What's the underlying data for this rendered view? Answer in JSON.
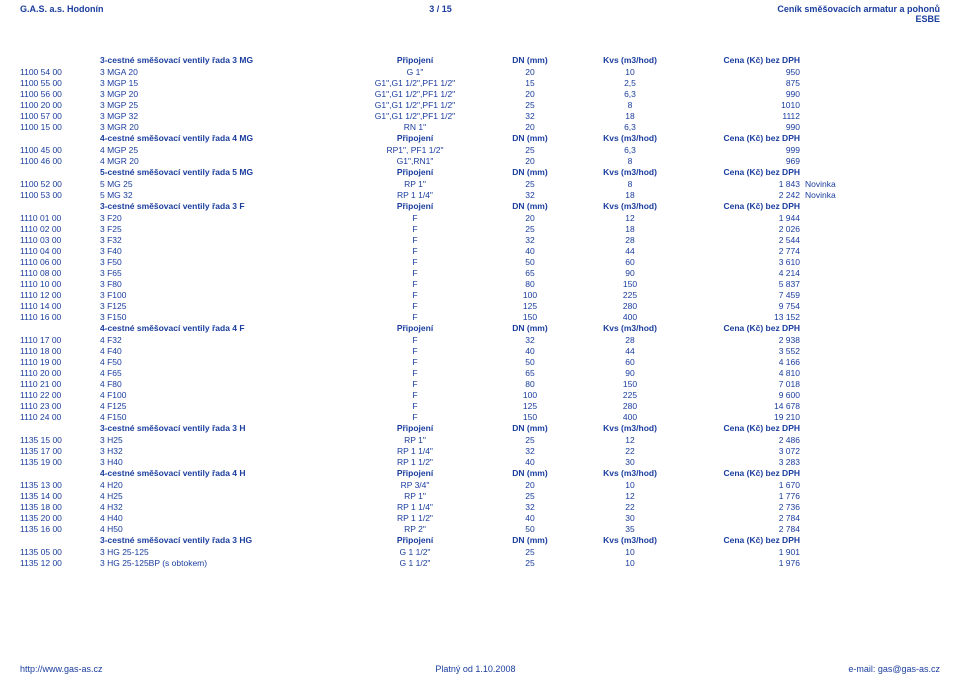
{
  "header": {
    "left": "G.A.S. a.s. Hodonín",
    "center": "3 / 15",
    "right1": "Ceník směšovacích armatur a pohonů",
    "right2": "ESBE"
  },
  "columns": {
    "conn": "Připojení",
    "dn": "DN (mm)",
    "kvs": "Kvs (m3/hod)",
    "price": "Cena (Kč) bez DPH"
  },
  "sections": [
    {
      "title": "3-cestné směšovací ventily řada 3 MG",
      "rows": [
        {
          "code": "1100 54 00",
          "name": "3 MGA 20",
          "conn": "G 1\"",
          "dn": "20",
          "kvs": "10",
          "price": "950",
          "note": ""
        },
        {
          "code": "1100 55 00",
          "name": "3 MGP 15",
          "conn": "G1\",G1 1/2\",PF1 1/2\"",
          "dn": "15",
          "kvs": "2,5",
          "price": "875",
          "note": ""
        },
        {
          "code": "1100 56 00",
          "name": "3 MGP 20",
          "conn": "G1\",G1 1/2\",PF1 1/2\"",
          "dn": "20",
          "kvs": "6,3",
          "price": "990",
          "note": ""
        },
        {
          "code": "1100 20 00",
          "name": "3 MGP 25",
          "conn": "G1\",G1 1/2\",PF1 1/2\"",
          "dn": "25",
          "kvs": "8",
          "price": "1010",
          "note": ""
        },
        {
          "code": "1100 57 00",
          "name": "3 MGP 32",
          "conn": "G1\",G1 1/2\",PF1 1/2\"",
          "dn": "32",
          "kvs": "18",
          "price": "1112",
          "note": ""
        },
        {
          "code": "1100 15 00",
          "name": "3 MGR 20",
          "conn": "RN 1\"",
          "dn": "20",
          "kvs": "6,3",
          "price": "990",
          "note": ""
        }
      ]
    },
    {
      "title": "4-cestné směšovací ventily řada 4 MG",
      "rows": [
        {
          "code": "1100 45 00",
          "name": "4 MGP 25",
          "conn": "RP1\", PF1 1/2\"",
          "dn": "25",
          "kvs": "6,3",
          "price": "999",
          "note": ""
        },
        {
          "code": "1100 46 00",
          "name": "4 MGR 20",
          "conn": "G1\",RN1\"",
          "dn": "20",
          "kvs": "8",
          "price": "969",
          "note": ""
        }
      ]
    },
    {
      "title": "5-cestné směšovací ventily řada 5 MG",
      "rows": [
        {
          "code": "1100 52 00",
          "name": "5 MG 25",
          "conn": "RP 1\"",
          "dn": "25",
          "kvs": "8",
          "price": "1 843",
          "note": "Novinka"
        },
        {
          "code": "1100 53 00",
          "name": "5 MG 32",
          "conn": "RP 1 1/4\"",
          "dn": "32",
          "kvs": "18",
          "price": "2 242",
          "note": "Novinka"
        }
      ]
    },
    {
      "title": "3-cestné směšovací ventily řada  3 F",
      "rows": [
        {
          "code": "1110 01 00",
          "name": "3 F20",
          "conn": "F",
          "dn": "20",
          "kvs": "12",
          "price": "1 944",
          "note": ""
        },
        {
          "code": "1110 02 00",
          "name": "3 F25",
          "conn": "F",
          "dn": "25",
          "kvs": "18",
          "price": "2 026",
          "note": ""
        },
        {
          "code": "1110 03 00",
          "name": "3 F32",
          "conn": "F",
          "dn": "32",
          "kvs": "28",
          "price": "2 544",
          "note": ""
        },
        {
          "code": "1110 04 00",
          "name": "3 F40",
          "conn": "F",
          "dn": "40",
          "kvs": "44",
          "price": "2 774",
          "note": ""
        },
        {
          "code": "1110 06 00",
          "name": "3 F50",
          "conn": "F",
          "dn": "50",
          "kvs": "60",
          "price": "3 610",
          "note": ""
        },
        {
          "code": "1110 08 00",
          "name": "3 F65",
          "conn": "F",
          "dn": "65",
          "kvs": "90",
          "price": "4 214",
          "note": ""
        },
        {
          "code": "1110 10 00",
          "name": "3 F80",
          "conn": "F",
          "dn": "80",
          "kvs": "150",
          "price": "5 837",
          "note": ""
        },
        {
          "code": "1110 12 00",
          "name": "3 F100",
          "conn": "F",
          "dn": "100",
          "kvs": "225",
          "price": "7 459",
          "note": ""
        },
        {
          "code": "1110 14 00",
          "name": "3 F125",
          "conn": "F",
          "dn": "125",
          "kvs": "280",
          "price": "9 754",
          "note": ""
        },
        {
          "code": "1110 16 00",
          "name": "3 F150",
          "conn": "F",
          "dn": "150",
          "kvs": "400",
          "price": "13 152",
          "note": ""
        }
      ]
    },
    {
      "title": "4-cestné směšovací ventily řada 4 F",
      "rows": [
        {
          "code": "1110 17 00",
          "name": "4 F32",
          "conn": "F",
          "dn": "32",
          "kvs": "28",
          "price": "2 938",
          "note": ""
        },
        {
          "code": "1110 18 00",
          "name": "4 F40",
          "conn": "F",
          "dn": "40",
          "kvs": "44",
          "price": "3 552",
          "note": ""
        },
        {
          "code": "1110 19 00",
          "name": "4 F50",
          "conn": "F",
          "dn": "50",
          "kvs": "60",
          "price": "4 166",
          "note": ""
        },
        {
          "code": "1110 20 00",
          "name": "4 F65",
          "conn": "F",
          "dn": "65",
          "kvs": "90",
          "price": "4 810",
          "note": ""
        },
        {
          "code": "1110 21 00",
          "name": "4 F80",
          "conn": "F",
          "dn": "80",
          "kvs": "150",
          "price": "7 018",
          "note": ""
        },
        {
          "code": "1110 22 00",
          "name": "4 F100",
          "conn": "F",
          "dn": "100",
          "kvs": "225",
          "price": "9 600",
          "note": ""
        },
        {
          "code": "1110 23 00",
          "name": "4 F125",
          "conn": "F",
          "dn": "125",
          "kvs": "280",
          "price": "14 678",
          "note": ""
        },
        {
          "code": "1110 24 00",
          "name": "4 F150",
          "conn": "F",
          "dn": "150",
          "kvs": "400",
          "price": "19 210",
          "note": ""
        }
      ]
    },
    {
      "title": "3-cestné směšovací ventily řada 3 H",
      "rows": [
        {
          "code": "1135 15 00",
          "name": "3 H25",
          "conn": "RP 1\"",
          "dn": "25",
          "kvs": "12",
          "price": "2 486",
          "note": ""
        },
        {
          "code": "1135 17 00",
          "name": "3 H32",
          "conn": "RP 1 1/4\"",
          "dn": "32",
          "kvs": "22",
          "price": "3 072",
          "note": ""
        },
        {
          "code": "1135 19 00",
          "name": "3 H40",
          "conn": "RP 1 1/2\"",
          "dn": "40",
          "kvs": "30",
          "price": "3 283",
          "note": ""
        }
      ]
    },
    {
      "title": "4-cestné směšovací ventily řada 4 H",
      "rows": [
        {
          "code": "1135 13 00",
          "name": "4 H20",
          "conn": "RP 3/4\"",
          "dn": "20",
          "kvs": "10",
          "price": "1 670",
          "note": ""
        },
        {
          "code": "1135 14 00",
          "name": "4 H25",
          "conn": "RP 1\"",
          "dn": "25",
          "kvs": "12",
          "price": "1 776",
          "note": ""
        },
        {
          "code": "1135 18 00",
          "name": "4 H32",
          "conn": "RP 1 1/4\"",
          "dn": "32",
          "kvs": "22",
          "price": "2 736",
          "note": ""
        },
        {
          "code": "1135 20 00",
          "name": "4 H40",
          "conn": "RP 1 1/2\"",
          "dn": "40",
          "kvs": "30",
          "price": "2 784",
          "note": ""
        },
        {
          "code": "1135 16 00",
          "name": "4 H50",
          "conn": "RP 2\"",
          "dn": "50",
          "kvs": "35",
          "price": "2 784",
          "note": ""
        }
      ]
    },
    {
      "title": "3-cestné směšovací ventily řada 3 HG",
      "rows": [
        {
          "code": "1135 05 00",
          "name": "3 HG 25-125",
          "conn": "G 1 1/2\"",
          "dn": "25",
          "kvs": "10",
          "price": "1 901",
          "note": ""
        },
        {
          "code": "1135 12 00",
          "name": "3 HG 25-125BP (s obtokem)",
          "conn": "G 1 1/2\"",
          "dn": "25",
          "kvs": "10",
          "price": "1 976",
          "note": ""
        }
      ]
    }
  ],
  "footer": {
    "left": "http://www.gas-as.cz",
    "center": "Platný od 1.10.2008",
    "right": "e-mail: gas@gas-as.cz"
  }
}
